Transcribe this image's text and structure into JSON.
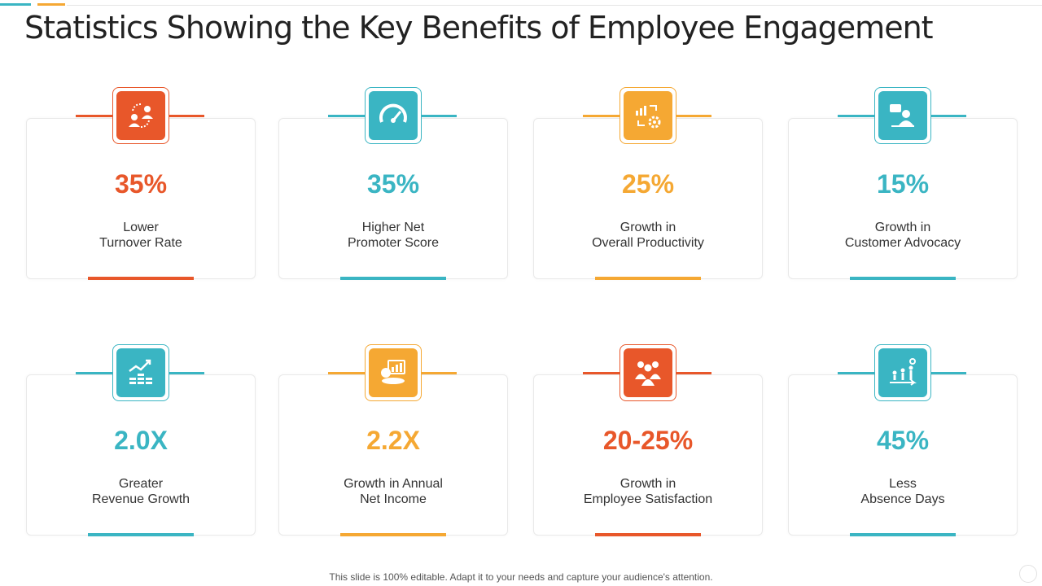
{
  "title": "Statistics Showing the Key Benefits of Employee Engagement",
  "colors": {
    "orange": "#e8572a",
    "teal": "#3ab5c3",
    "yellow": "#f5a833"
  },
  "cards": [
    {
      "value": "35%",
      "label": "Lower\nTurnover  Rate",
      "color": "#e8572a",
      "icon": "team-exchange-icon"
    },
    {
      "value": "35%",
      "label": "Higher Net\nPromoter Score",
      "color": "#3ab5c3",
      "icon": "speedometer-icon"
    },
    {
      "value": "25%",
      "label": "Growth  in\nOverall  Productivity",
      "color": "#f5a833",
      "icon": "productivity-cycle-icon"
    },
    {
      "value": "15%",
      "label": "Growth  in\nCustomer Advocacy",
      "color": "#3ab5c3",
      "icon": "speaker-presentation-icon"
    },
    {
      "value": "2.0X",
      "label": "Greater\nRevenue  Growth",
      "color": "#3ab5c3",
      "icon": "revenue-growth-icon"
    },
    {
      "value": "2.2X",
      "label": "Growth  in Annual\nNet Income",
      "color": "#f5a833",
      "icon": "income-chart-icon"
    },
    {
      "value": "20-25%",
      "label": "Growth  in\nEmployee Satisfaction",
      "color": "#e8572a",
      "icon": "employees-group-icon"
    },
    {
      "value": "45%",
      "label": "Less\nAbsence Days",
      "color": "#3ab5c3",
      "icon": "attendance-progress-icon"
    }
  ],
  "footer": "This slide is 100% editable. Adapt it to your needs and capture your audience's attention."
}
